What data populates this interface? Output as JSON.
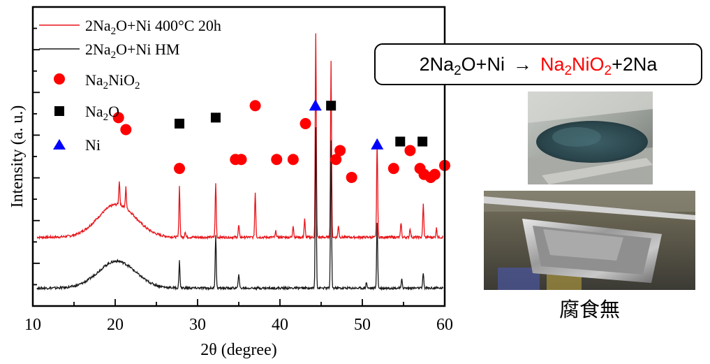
{
  "chart_data": {
    "type": "line",
    "xlabel": "2θ (degree)",
    "ylabel": "Intensity (a. u.)",
    "xlim": [
      10,
      60
    ],
    "xticks": [
      10,
      20,
      30,
      40,
      50,
      60
    ],
    "x_minor_step": 5,
    "series": [
      {
        "name": "2Na2O+Ni 400°C 20h",
        "color": "#e8141a",
        "baseline": 0.23,
        "halo": {
          "center": 20.2,
          "width": 3.2,
          "height": 0.11
        },
        "peaks": [
          [
            20.5,
            0.08
          ],
          [
            21.3,
            0.07
          ],
          [
            27.8,
            0.17
          ],
          [
            28.5,
            0.02
          ],
          [
            32.2,
            0.18
          ],
          [
            35.0,
            0.04
          ],
          [
            37.0,
            0.15
          ],
          [
            39.5,
            0.02
          ],
          [
            41.6,
            0.04
          ],
          [
            43.0,
            0.06
          ],
          [
            44.35,
            0.68
          ],
          [
            46.2,
            0.59
          ],
          [
            47.1,
            0.04
          ],
          [
            51.8,
            0.32
          ],
          [
            54.7,
            0.05
          ],
          [
            55.8,
            0.03
          ],
          [
            57.4,
            0.11
          ],
          [
            59.0,
            0.03
          ]
        ]
      },
      {
        "name": "2Na2O+Ni HM",
        "color": "#1a1a1a",
        "baseline": 0.06,
        "halo": {
          "center": 20.2,
          "width": 3.2,
          "height": 0.09
        },
        "peaks": [
          [
            27.8,
            0.09
          ],
          [
            32.2,
            0.18
          ],
          [
            35.0,
            0.05
          ],
          [
            44.35,
            0.54
          ],
          [
            46.2,
            0.49
          ],
          [
            50.5,
            0.02
          ],
          [
            51.8,
            0.22
          ],
          [
            54.8,
            0.03
          ],
          [
            57.4,
            0.05
          ]
        ]
      }
    ],
    "marker_series": [
      {
        "name": "Na2NiO2",
        "symbol": "circle",
        "color": "#ff0000",
        "points": [
          [
            20.4,
            0.63
          ],
          [
            21.3,
            0.59
          ],
          [
            27.8,
            0.46
          ],
          [
            34.6,
            0.49
          ],
          [
            35.3,
            0.49
          ],
          [
            37.0,
            0.67
          ],
          [
            39.6,
            0.49
          ],
          [
            41.6,
            0.49
          ],
          [
            43.1,
            0.61
          ],
          [
            46.8,
            0.49
          ],
          [
            47.3,
            0.52
          ],
          [
            48.7,
            0.43
          ],
          [
            53.8,
            0.46
          ],
          [
            55.8,
            0.52
          ],
          [
            57.0,
            0.46
          ],
          [
            57.5,
            0.44
          ],
          [
            58.3,
            0.43
          ],
          [
            58.8,
            0.44
          ],
          [
            60.0,
            0.47
          ]
        ]
      },
      {
        "name": "Na2O",
        "symbol": "square",
        "color": "#000000",
        "points": [
          [
            27.8,
            0.61
          ],
          [
            32.2,
            0.63
          ],
          [
            46.2,
            0.67
          ],
          [
            54.6,
            0.55
          ],
          [
            57.3,
            0.55
          ]
        ]
      },
      {
        "name": "Ni",
        "symbol": "triangle",
        "color": "#0000ff",
        "points": [
          [
            44.3,
            0.67
          ],
          [
            51.8,
            0.54
          ]
        ]
      }
    ]
  },
  "legend": {
    "series1": {
      "pre": "2Na",
      "sub": "2",
      "post": "O+Ni 400°C 20h"
    },
    "series2": {
      "pre": "2Na",
      "sub": "2",
      "post": "O+Ni HM"
    },
    "marker1": {
      "pre": "Na",
      "sub1": "2",
      "mid": "NiO",
      "sub2": "2"
    },
    "marker2": {
      "pre": "Na",
      "sub": "2",
      "post": "O"
    },
    "marker3": {
      "text": "Ni"
    }
  },
  "equation": {
    "reactant_pre": "2Na",
    "reactant_sub": "2",
    "reactant_post": "O+Ni",
    "arrow": "→",
    "product_pre": "Na",
    "product_sub1": "2",
    "product_mid": "NiO",
    "product_sub2": "2",
    "product_post": "+2Na"
  },
  "caption": "腐食無"
}
